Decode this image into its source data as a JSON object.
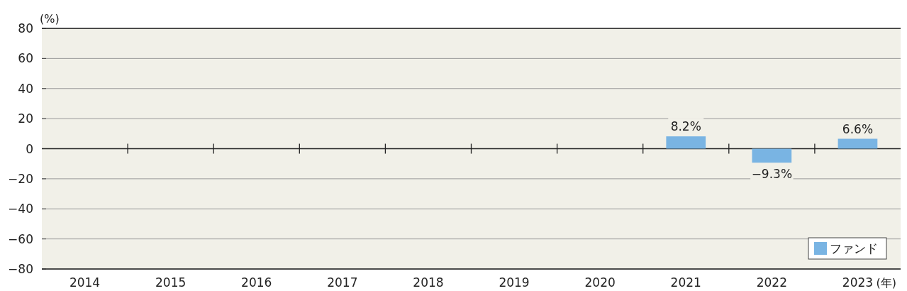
{
  "chart_data": {
    "type": "bar",
    "ylabel": "(%)",
    "xlabel": "(年)",
    "categories": [
      "2014",
      "2015",
      "2016",
      "2017",
      "2018",
      "2019",
      "2020",
      "2021",
      "2022",
      "2023"
    ],
    "series": [
      {
        "name": "ファンド",
        "color": "#79b4e3",
        "values": [
          null,
          null,
          null,
          null,
          null,
          null,
          null,
          8.2,
          -9.3,
          6.6
        ],
        "value_labels": [
          null,
          null,
          null,
          null,
          null,
          null,
          null,
          "8.2%",
          "−9.3%",
          "6.6%"
        ]
      }
    ],
    "ylim": [
      -80,
      80
    ],
    "yticks": [
      80,
      60,
      40,
      20,
      0,
      {
        "value": -20,
        "label": "−20"
      },
      {
        "value": -40,
        "label": "−40"
      },
      {
        "value": -60,
        "label": "−60"
      },
      {
        "value": -80,
        "label": "−80"
      }
    ],
    "grid": "y",
    "legend": "bottom right"
  }
}
